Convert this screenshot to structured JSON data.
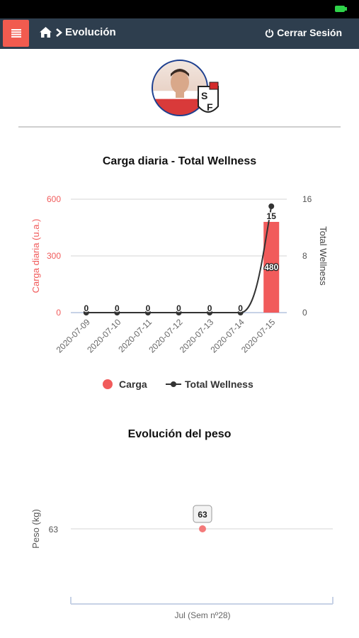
{
  "header": {
    "title": "Evolución",
    "logout_label": "Cerrar Sesión",
    "menu_icon": "hamburger-icon",
    "home_icon": "home-icon",
    "accent_color": "#f15b4f",
    "bar_color": "#2e3e4e"
  },
  "charts": {
    "wellness": {
      "title": "Carga diaria - Total Wellness"
    },
    "weight": {
      "title": "Evolución del peso"
    }
  },
  "chart_data": [
    {
      "type": "bar",
      "title": "Carga diaria - Total Wellness",
      "categories": [
        "2020-07-09",
        "2020-07-10",
        "2020-07-11",
        "2020-07-12",
        "2020-07-13",
        "2020-07-14",
        "2020-07-15"
      ],
      "y_left_label": "Carga diaria (u.a.)",
      "y_left_ticks": [
        0,
        300,
        600
      ],
      "y_left_range": [
        0,
        600
      ],
      "y_right_label": "Total Wellness",
      "y_right_ticks": [
        0,
        8,
        16
      ],
      "y_right_range": [
        0,
        16
      ],
      "grid": true,
      "legend_position": "bottom",
      "series": [
        {
          "name": "Carga",
          "type": "bar",
          "axis": "left",
          "color": "#f15b5b",
          "values": [
            0,
            0,
            0,
            0,
            0,
            0,
            480
          ]
        },
        {
          "name": "Total Wellness",
          "type": "line",
          "axis": "right",
          "color": "#333333",
          "values": [
            0,
            0,
            0,
            0,
            0,
            0,
            15
          ]
        }
      ]
    },
    {
      "type": "scatter",
      "title": "Evolución del peso",
      "y_label": "Peso (kg)",
      "y_ticks": [
        63
      ],
      "x_label": "Jul (Sem nº28)",
      "grid": true,
      "series": [
        {
          "name": "",
          "color": "#f47a7a",
          "values": [
            63
          ],
          "labels": [
            "63"
          ]
        }
      ]
    }
  ]
}
